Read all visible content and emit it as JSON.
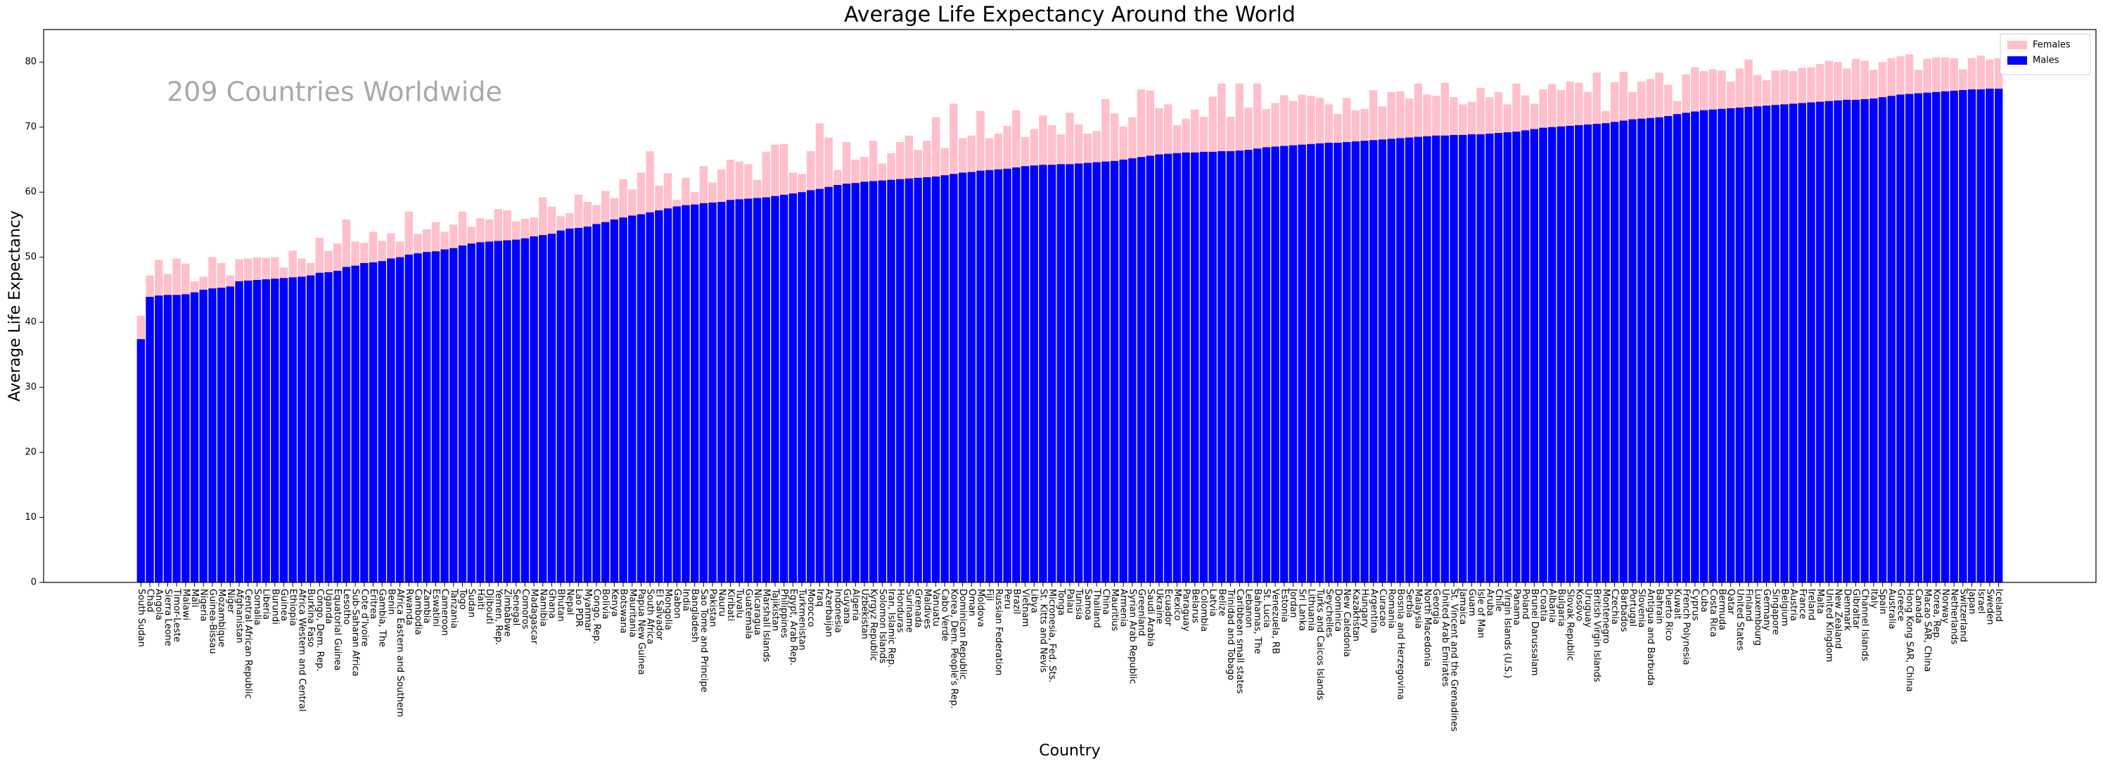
{
  "chart_data": {
    "type": "bar",
    "overlap": true,
    "title": "Average Life Expectancy Around the World",
    "annotation": "209 Countries Worldwide",
    "xlabel": "Country",
    "ylabel": "Average Life Expectancy",
    "legend": "upper right",
    "ylim": [
      0,
      85
    ],
    "yticks": [
      0,
      10,
      20,
      30,
      40,
      50,
      60,
      70,
      80
    ],
    "categories": [
      "South Sudan",
      "Chad",
      "Angola",
      "Sierra Leone",
      "Timor-Leste",
      "Malawi",
      "Mali",
      "Nigeria",
      "Guinea-Bissau",
      "Mozambique",
      "Niger",
      "Afghanistan",
      "Central African Republic",
      "Somalia",
      "Liberia",
      "Burundi",
      "Guinea",
      "Ethiopia",
      "Africa Western and Central",
      "Burkina Faso",
      "Congo, Dem. Rep.",
      "Uganda",
      "Equatorial Guinea",
      "Lesotho",
      "Sub-Saharan Africa",
      "Cote d'Ivoire",
      "Eritrea",
      "Gambia, The",
      "Benin",
      "Africa Eastern and Southern",
      "Rwanda",
      "Cambodia",
      "Zambia",
      "Eswatini",
      "Cameroon",
      "Tanzania",
      "Togo",
      "Sudan",
      "Haiti",
      "Djibouti",
      "Yemen, Rep.",
      "Zimbabwe",
      "Senegal",
      "Comoros",
      "Madagascar",
      "Namibia",
      "Ghana",
      "Bhutan",
      "Nepal",
      "Lao PDR",
      "Myanmar",
      "Congo, Rep.",
      "Bolivia",
      "Kenya",
      "Botswana",
      "Mauritania",
      "Papua New Guinea",
      "South Africa",
      "El Salvador",
      "Mongolia",
      "Gabon",
      "India",
      "Bangladesh",
      "Sao Tome and Principe",
      "Pakistan",
      "Nauru",
      "Kiribati",
      "Tuvalu",
      "Guatemala",
      "Nicaragua",
      "Marshall Islands",
      "Tajikistan",
      "Philippines",
      "Egypt, Arab Rep.",
      "Turkmenistan",
      "Morocco",
      "Iraq",
      "Azerbaijan",
      "Indonesia",
      "Guyana",
      "Algeria",
      "Uzbekistan",
      "Kyrgyz Republic",
      "Solomon Islands",
      "Iran, Islamic Rep.",
      "Honduras",
      "Suriname",
      "Grenada",
      "Maldives",
      "Vanuatu",
      "Cabo Verde",
      "Korea, Dem. People's Rep.",
      "Dominican Republic",
      "Oman",
      "Moldova",
      "Fiji",
      "Russian Federation",
      "Peru",
      "Brazil",
      "Vietnam",
      "Libya",
      "St. Kitts and Nevis",
      "Micronesia, Fed. Sts.",
      "Tonga",
      "Palau",
      "Tunisia",
      "Samoa",
      "Thailand",
      "China",
      "Mauritius",
      "Armenia",
      "Syrian Arab Republic",
      "Greenland",
      "Saudi Arabia",
      "Ukraine",
      "Ecuador",
      "Mexico",
      "Paraguay",
      "Belarus",
      "Colombia",
      "Latvia",
      "Belize",
      "Trinidad and Tobago",
      "Caribbean small states",
      "Lebanon",
      "Bahamas, The",
      "St. Lucia",
      "Venezuela, RB",
      "Estonia",
      "Jordan",
      "Sri Lanka",
      "Lithuania",
      "Turks and Caicos Islands",
      "Seychelles",
      "Dominica",
      "New Caledonia",
      "Kazakhstan",
      "Hungary",
      "Argentina",
      "Curacao",
      "Romania",
      "Bosnia and Herzegovina",
      "Serbia",
      "Malaysia",
      "North Macedonia",
      "Georgia",
      "United Arab Emirates",
      "St. Vincent and the Grenadines",
      "Jamaica",
      "Guam",
      "Isle of Man",
      "Aruba",
      "Chile",
      "Virgin Islands (U.S.)",
      "Panama",
      "Poland",
      "Brunei Darussalam",
      "Croatia",
      "Albania",
      "Bulgaria",
      "Slovak Republic",
      "Kosovo",
      "Uruguay",
      "British Virgin Islands",
      "Montenegro",
      "Czechia",
      "Barbados",
      "Portugal",
      "Slovenia",
      "Antigua and Barbuda",
      "Bahrain",
      "Puerto Rico",
      "Kuwait",
      "French Polynesia",
      "Cyprus",
      "Cuba",
      "Costa Rica",
      "Bermuda",
      "Qatar",
      "United States",
      "Finland",
      "Luxembourg",
      "Germany",
      "Singapore",
      "Belgium",
      "Austria",
      "France",
      "Ireland",
      "Malta",
      "United Kingdom",
      "New Zealand",
      "Denmark",
      "Gibraltar",
      "Channel Islands",
      "Italy",
      "Spain",
      "Australia",
      "Greece",
      "Hong Kong SAR, China",
      "Canada",
      "Macao SAR, China",
      "Korea, Rep.",
      "Norway",
      "Netherlands",
      "Switzerland",
      "Japan",
      "Israel",
      "Sweden",
      "Iceland"
    ],
    "series": [
      {
        "name": "Females",
        "color": "#ffc0cb",
        "values": [
          41.0,
          47.2,
          49.6,
          47.4,
          49.8,
          49.0,
          46.3,
          47.0,
          50.0,
          49.1,
          47.2,
          49.7,
          49.8,
          50.0,
          49.9,
          50.0,
          48.4,
          51.0,
          49.8,
          49.1,
          53.0,
          51.0,
          52.1,
          55.8,
          52.4,
          52.2,
          53.9,
          52.5,
          53.7,
          52.4,
          57.0,
          53.6,
          54.3,
          55.4,
          53.9,
          55.0,
          57.0,
          54.7,
          56.0,
          55.8,
          57.4,
          57.2,
          55.5,
          55.9,
          56.1,
          59.2,
          57.8,
          56.3,
          56.8,
          59.6,
          58.5,
          58.0,
          60.2,
          59.1,
          62.0,
          60.4,
          63.0,
          66.3,
          61.0,
          62.9,
          58.8,
          62.2,
          60.0,
          64.0,
          61.5,
          63.5,
          65.0,
          64.7,
          64.3,
          61.9,
          66.2,
          67.3,
          67.4,
          63.0,
          62.8,
          66.3,
          70.6,
          68.4,
          63.4,
          67.7,
          65.0,
          65.4,
          67.9,
          64.4,
          66.0,
          67.7,
          68.7,
          66.5,
          67.9,
          71.5,
          66.8,
          73.6,
          68.3,
          68.7,
          72.5,
          68.3,
          69.0,
          70.2,
          72.6,
          68.5,
          69.7,
          71.8,
          70.3,
          68.9,
          72.2,
          70.4,
          69.0,
          69.4,
          74.3,
          72.1,
          70.1,
          71.5,
          75.8,
          75.6,
          72.9,
          73.5,
          70.3,
          71.3,
          72.7,
          71.6,
          74.7,
          76.7,
          71.6,
          76.7,
          73.0,
          76.7,
          72.8,
          73.7,
          74.9,
          74.0,
          75.0,
          74.8,
          74.5,
          73.5,
          72.0,
          74.5,
          72.6,
          72.8,
          75.7,
          73.2,
          75.4,
          75.5,
          74.4,
          76.7,
          75.0,
          74.8,
          76.8,
          74.6,
          73.5,
          73.9,
          76.0,
          74.6,
          75.4,
          73.5,
          76.7,
          74.9,
          73.6,
          75.8,
          76.6,
          75.7,
          77.0,
          76.8,
          75.4,
          78.4,
          72.5,
          76.9,
          78.5,
          75.4,
          77.0,
          77.4,
          78.4,
          76.5,
          74.0,
          78.1,
          79.2,
          78.6,
          78.9,
          78.7,
          77.0,
          79.0,
          80.4,
          78.0,
          77.2,
          78.7,
          78.8,
          78.6,
          79.1,
          79.2,
          79.7,
          80.2,
          80.0,
          79.0,
          80.5,
          80.2,
          78.8,
          80.0,
          80.6,
          80.9,
          81.2,
          78.8,
          80.5,
          80.7,
          80.7,
          80.6,
          78.9,
          80.6,
          81.0,
          80.4,
          80.6
        ]
      },
      {
        "name": "Males",
        "color": "#0000ff",
        "values": [
          37.4,
          43.9,
          44.1,
          44.2,
          44.2,
          44.3,
          44.6,
          45.0,
          45.2,
          45.3,
          45.5,
          46.3,
          46.4,
          46.5,
          46.6,
          46.7,
          46.8,
          46.9,
          47.0,
          47.2,
          47.6,
          47.7,
          47.9,
          48.5,
          48.7,
          49.1,
          49.2,
          49.4,
          49.8,
          50.0,
          50.4,
          50.6,
          50.8,
          50.9,
          51.2,
          51.4,
          51.8,
          52.1,
          52.3,
          52.4,
          52.5,
          52.6,
          52.7,
          52.9,
          53.2,
          53.4,
          53.6,
          54.1,
          54.4,
          54.5,
          54.7,
          55.1,
          55.4,
          55.8,
          56.1,
          56.4,
          56.6,
          56.9,
          57.2,
          57.5,
          57.8,
          58.0,
          58.1,
          58.3,
          58.4,
          58.5,
          58.8,
          58.9,
          59.0,
          59.1,
          59.2,
          59.4,
          59.6,
          59.8,
          60.0,
          60.3,
          60.5,
          60.8,
          61.1,
          61.3,
          61.4,
          61.6,
          61.7,
          61.8,
          61.9,
          62.0,
          62.1,
          62.2,
          62.3,
          62.4,
          62.6,
          62.8,
          63.0,
          63.1,
          63.3,
          63.4,
          63.5,
          63.6,
          63.8,
          64.0,
          64.1,
          64.2,
          64.2,
          64.3,
          64.3,
          64.4,
          64.5,
          64.6,
          64.7,
          64.8,
          65.0,
          65.2,
          65.4,
          65.6,
          65.8,
          65.9,
          66.0,
          66.1,
          66.1,
          66.2,
          66.2,
          66.3,
          66.3,
          66.4,
          66.5,
          66.7,
          66.9,
          67.0,
          67.1,
          67.2,
          67.3,
          67.4,
          67.5,
          67.6,
          67.6,
          67.7,
          67.8,
          67.9,
          68.0,
          68.1,
          68.2,
          68.3,
          68.4,
          68.5,
          68.6,
          68.7,
          68.7,
          68.8,
          68.8,
          68.9,
          68.9,
          69.0,
          69.1,
          69.2,
          69.3,
          69.5,
          69.7,
          69.9,
          70.0,
          70.1,
          70.2,
          70.3,
          70.4,
          70.5,
          70.6,
          70.8,
          71.0,
          71.2,
          71.3,
          71.4,
          71.5,
          71.7,
          72.0,
          72.2,
          72.4,
          72.6,
          72.7,
          72.8,
          72.9,
          73.0,
          73.1,
          73.2,
          73.3,
          73.4,
          73.5,
          73.6,
          73.7,
          73.8,
          73.9,
          74.0,
          74.1,
          74.2,
          74.2,
          74.3,
          74.4,
          74.6,
          74.8,
          75.0,
          75.1,
          75.2,
          75.3,
          75.4,
          75.5,
          75.6,
          75.7,
          75.8,
          75.8,
          75.9,
          75.9
        ]
      }
    ]
  }
}
